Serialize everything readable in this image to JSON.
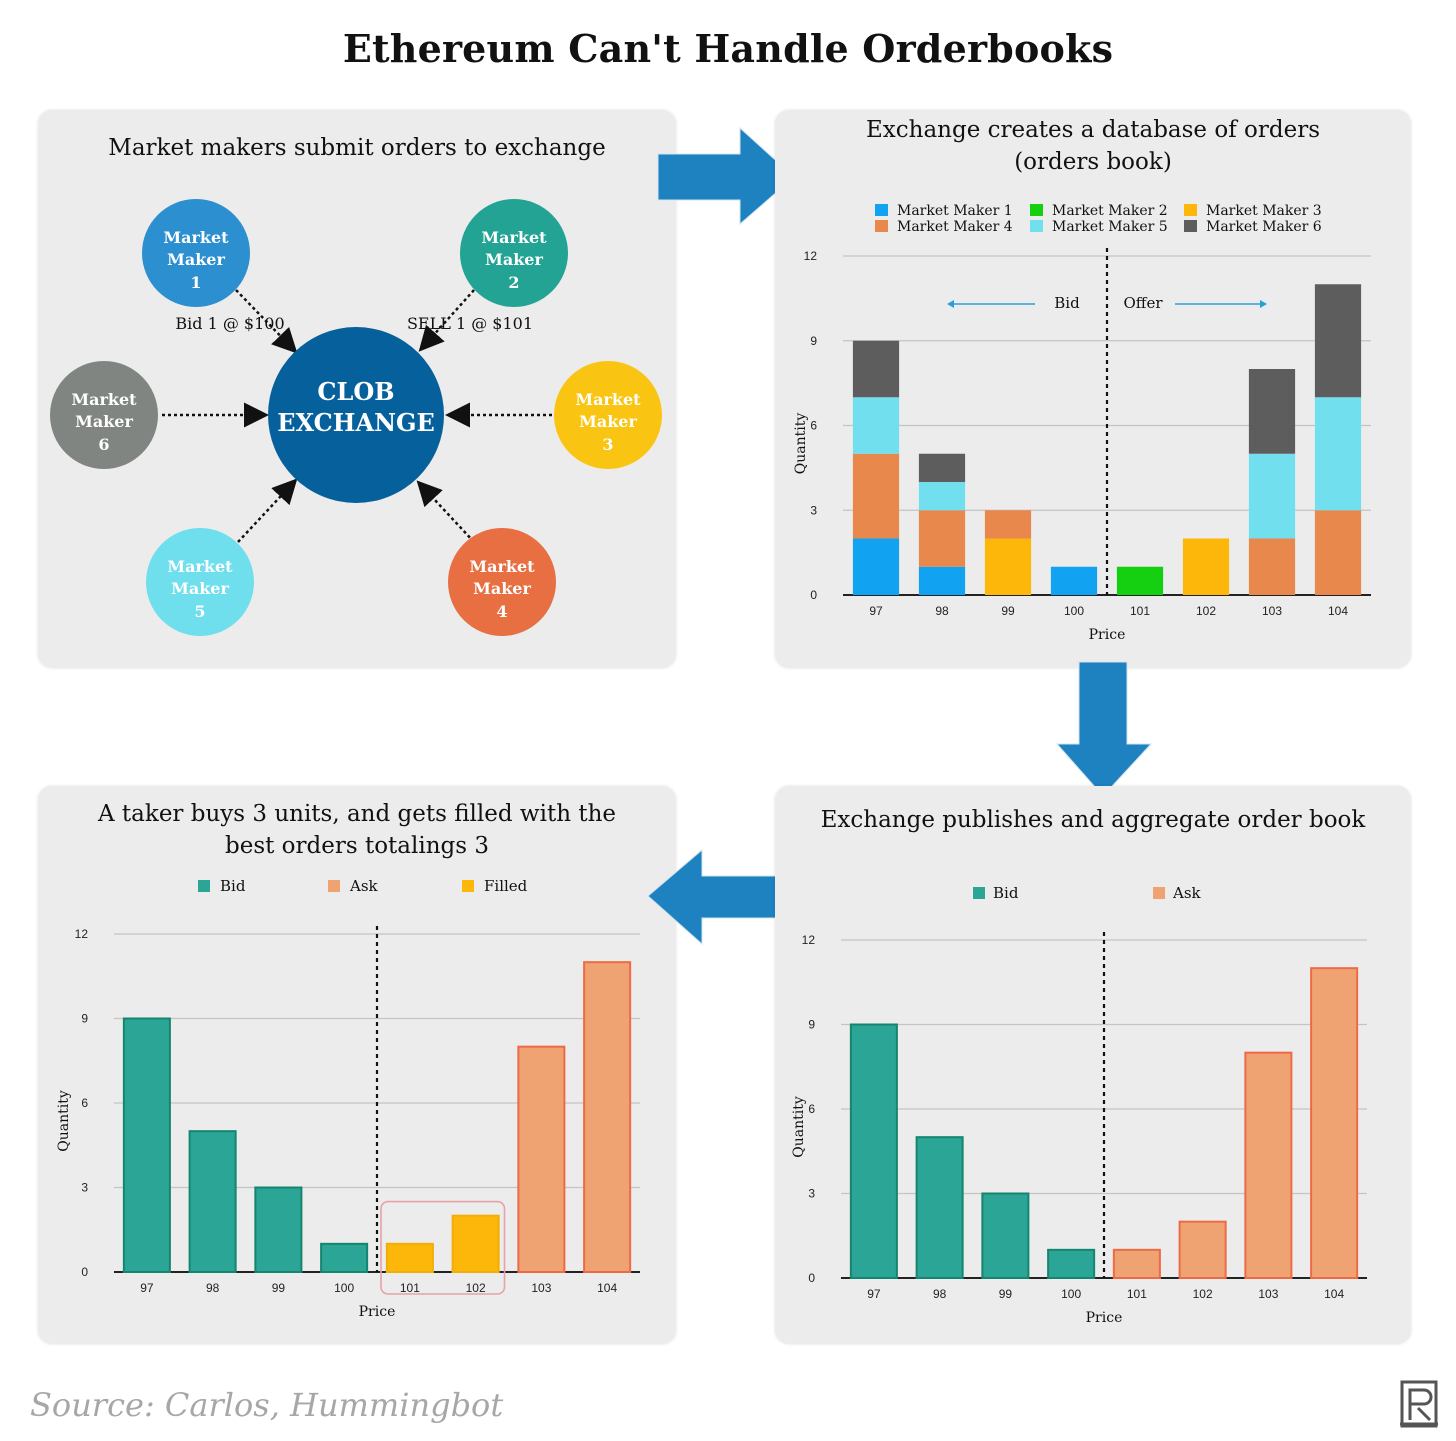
{
  "title": "Ethereum Can't Handle Orderbooks",
  "source": "Source: Carlos, Hummingbot",
  "colors": {
    "panel_bg": "#ececec",
    "arrow": "#1f82c0",
    "mm1": "#11a3f2",
    "mm2": "#15d011",
    "mm3": "#fcb70a",
    "mm4": "#e9884c",
    "mm5": "#71dfee",
    "mm6": "#5d5d5d",
    "bid": "#2aa596",
    "ask": "#f0a372",
    "filled": "#fcb70a"
  },
  "panel1": {
    "title": "Market makers submit orders to exchange",
    "center": {
      "line1": "CLOB",
      "line2": "EXCHANGE"
    },
    "nodes": [
      {
        "word1": "Market",
        "word2": "Maker",
        "num": "1",
        "color": "#2b8fd0"
      },
      {
        "word1": "Market",
        "word2": "Maker",
        "num": "2",
        "color": "#23a393"
      },
      {
        "word1": "Market",
        "word2": "Maker",
        "num": "3",
        "color": "#f9c512"
      },
      {
        "word1": "Market",
        "word2": "Maker",
        "num": "4",
        "color": "#e76f42"
      },
      {
        "word1": "Market",
        "word2": "Maker",
        "num": "5",
        "color": "#6fdfee"
      },
      {
        "word1": "Market",
        "word2": "Maker",
        "num": "6",
        "color": "#808582"
      }
    ],
    "bid_label": "Bid 1 @ $100",
    "sell_label": "SELL 1 @ $101"
  },
  "panel2": {
    "title_line1": "Exchange creates a database of orders",
    "title_line2": "(orders book)",
    "legend": [
      "Market Maker 1",
      "Market Maker 2",
      "Market Maker 3",
      "Market Maker 4",
      "Market Maker 5",
      "Market Maker 6"
    ],
    "bid_label": "Bid",
    "offer_label": "Offer"
  },
  "panel3": {
    "title": "Exchange publishes and aggregate order book",
    "legend": [
      "Bid",
      "Ask"
    ]
  },
  "panel4": {
    "title_line1": "A taker buys 3 units, and gets filled with the",
    "title_line2": "best orders totalings 3",
    "legend": [
      "Bid",
      "Ask",
      "Filled"
    ]
  },
  "chart_data": [
    {
      "type": "bar",
      "stacked": true,
      "title": "Exchange creates a database of orders (orders book)",
      "categories": [
        "97",
        "98",
        "99",
        "100",
        "101",
        "102",
        "103",
        "104"
      ],
      "series": [
        {
          "name": "Market Maker 1",
          "values": [
            2,
            1,
            0,
            1,
            0,
            0,
            0,
            0
          ]
        },
        {
          "name": "Market Maker 2",
          "values": [
            0,
            0,
            0,
            0,
            1,
            0,
            0,
            0
          ]
        },
        {
          "name": "Market Maker 3",
          "values": [
            0,
            0,
            2,
            0,
            0,
            2,
            0,
            0
          ]
        },
        {
          "name": "Market Maker 4",
          "values": [
            3,
            2,
            1,
            0,
            0,
            0,
            2,
            3
          ]
        },
        {
          "name": "Market Maker 5",
          "values": [
            2,
            1,
            0,
            0,
            0,
            0,
            3,
            4
          ]
        },
        {
          "name": "Market Maker 6",
          "values": [
            2,
            1,
            0,
            0,
            0,
            0,
            3,
            4
          ]
        }
      ],
      "xlabel": "Price",
      "ylabel": "Quantity",
      "yticks": [
        0,
        3,
        6,
        9,
        12
      ],
      "ylim": [
        0,
        12
      ],
      "divider_after": "100"
    },
    {
      "type": "bar",
      "title": "Exchange publishes and aggregate order book",
      "categories": [
        "97",
        "98",
        "99",
        "100",
        "101",
        "102",
        "103",
        "104"
      ],
      "values": [
        9,
        5,
        3,
        1,
        1,
        2,
        8,
        11
      ],
      "kinds": [
        "Bid",
        "Bid",
        "Bid",
        "Bid",
        "Ask",
        "Ask",
        "Ask",
        "Ask"
      ],
      "xlabel": "Price",
      "ylabel": "Quantity",
      "yticks": [
        0,
        3,
        6,
        9,
        12
      ],
      "ylim": [
        0,
        12
      ],
      "divider_after": "100"
    },
    {
      "type": "bar",
      "title": "A taker buys 3 units, and gets filled with the best orders totalings 3",
      "categories": [
        "97",
        "98",
        "99",
        "100",
        "101",
        "102",
        "103",
        "104"
      ],
      "values": [
        9,
        5,
        3,
        1,
        1,
        2,
        8,
        11
      ],
      "kinds": [
        "Bid",
        "Bid",
        "Bid",
        "Bid",
        "Filled",
        "Filled",
        "Ask",
        "Ask"
      ],
      "xlabel": "Price",
      "ylabel": "Quantity",
      "yticks": [
        0,
        3,
        6,
        9,
        12
      ],
      "ylim": [
        0,
        12
      ],
      "divider_after": "100",
      "highlight": [
        "101",
        "102"
      ]
    }
  ]
}
